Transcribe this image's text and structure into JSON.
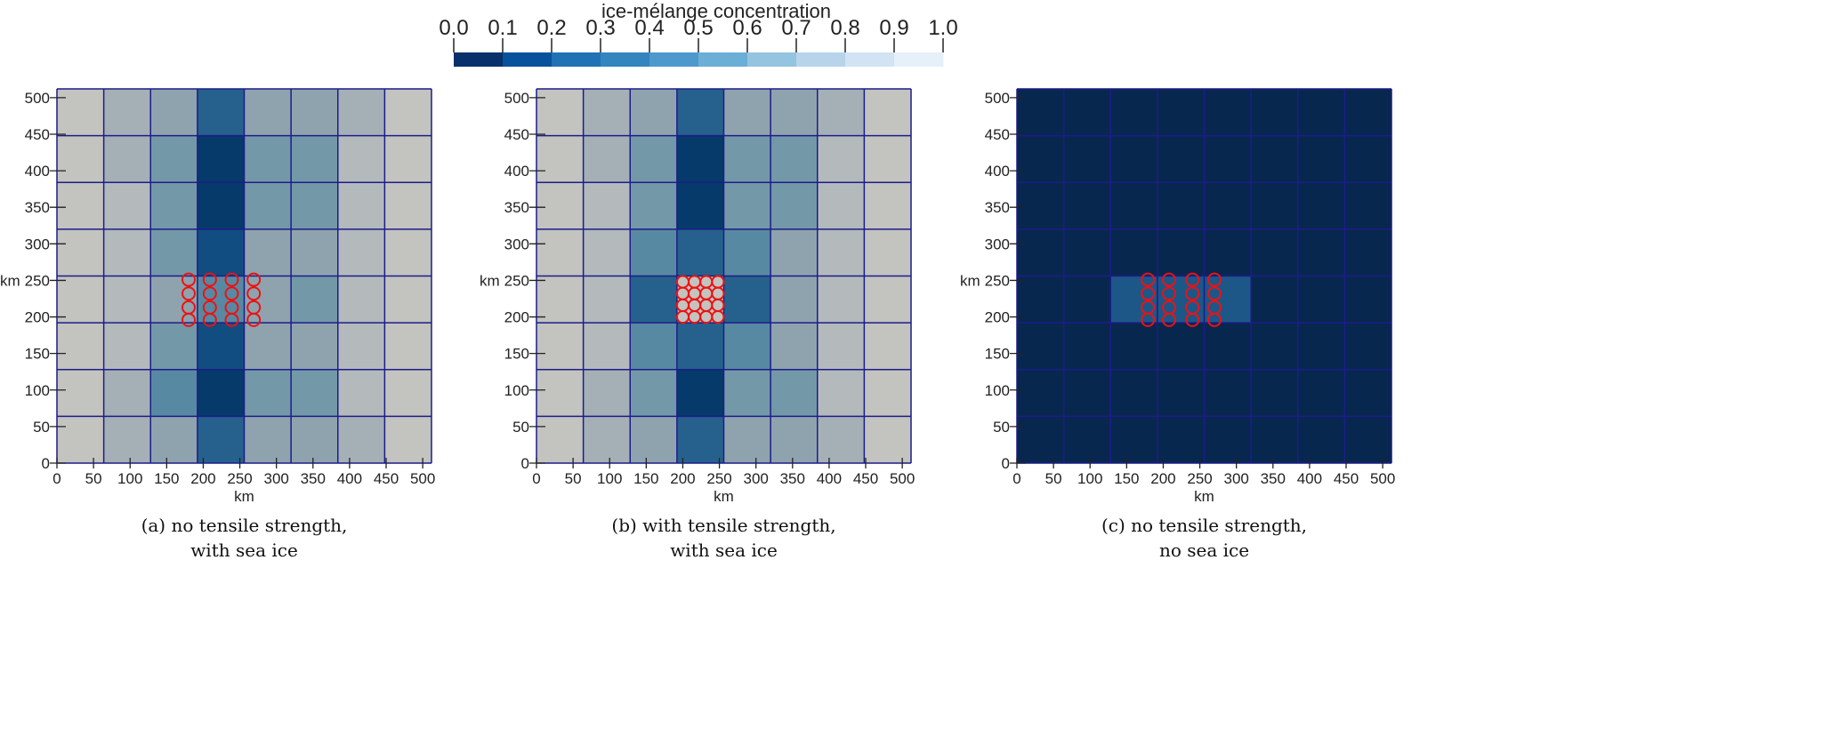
{
  "chart_data": {
    "type": "heatmap",
    "colorbar": {
      "title": "ice-mélange concentration",
      "ticks": [
        "0.0",
        "0.1",
        "0.2",
        "0.3",
        "0.4",
        "0.5",
        "0.6",
        "0.7",
        "0.8",
        "0.9",
        "1.0"
      ],
      "range": [
        0,
        1
      ],
      "colors": [
        "#08306b",
        "#08519c",
        "#2171b5",
        "#3484c0",
        "#4d98cc",
        "#6baed6",
        "#94c4df",
        "#b7d4ea",
        "#d2e3f3",
        "#e6f0f9",
        "#f7fbff"
      ]
    },
    "grid_color": "#1c1c8a",
    "marker_color": "#ee1111",
    "panels": [
      {
        "caption": [
          "(a) no tensile strength,",
          "with sea ice"
        ],
        "xlabel": "km",
        "ylabel": "km",
        "xlim": [
          0,
          512
        ],
        "ylim": [
          0,
          512
        ],
        "xticks": [
          "0",
          "50",
          "100",
          "150",
          "200",
          "250",
          "300",
          "350",
          "400",
          "450",
          "500"
        ],
        "yticks": [
          "0",
          "50",
          "100",
          "150",
          "200",
          "250",
          "300",
          "350",
          "400",
          "450",
          "500"
        ],
        "cell_size_km": 64,
        "cells_top_to_bottom": [
          [
            "#c3c3bf",
            "#a5afb6",
            "#8fa3ae",
            "#25618c",
            "#8fa3ae",
            "#8fa3ae",
            "#a5afb6",
            "#c3c3bf"
          ],
          [
            "#c3c3bf",
            "#a5afb6",
            "#7398a8",
            "#063a6b",
            "#7398a8",
            "#7398a8",
            "#b4b9bc",
            "#c3c3bf"
          ],
          [
            "#c3c3bf",
            "#b4b9bc",
            "#7398a8",
            "#063a6b",
            "#7398a8",
            "#7398a8",
            "#b4b9bc",
            "#c3c3bf"
          ],
          [
            "#c3c3bf",
            "#b4b9bc",
            "#7398a8",
            "#114d80",
            "#8fa3ae",
            "#8fa3ae",
            "#b4b9bc",
            "#c3c3bf"
          ],
          [
            "#c3c3bf",
            "#b4b9bc",
            "#8fa3ae",
            "#5889a3",
            "#8fa3ae",
            "#7398a8",
            "#b4b9bc",
            "#c3c3bf"
          ],
          [
            "#c3c3bf",
            "#b4b9bc",
            "#7398a8",
            "#114d80",
            "#8fa3ae",
            "#8fa3ae",
            "#b4b9bc",
            "#c3c3bf"
          ],
          [
            "#c3c3bf",
            "#a5afb6",
            "#5889a3",
            "#063a6b",
            "#7398a8",
            "#7398a8",
            "#b4b9bc",
            "#c3c3bf"
          ],
          [
            "#c3c3bf",
            "#a5afb6",
            "#8fa3ae",
            "#25618c",
            "#8fa3ae",
            "#8fa3ae",
            "#a5afb6",
            "#c3c3bf"
          ]
        ],
        "markers": {
          "x": [
            180,
            209,
            239,
            269
          ],
          "y": [
            196,
            213,
            232,
            251
          ],
          "radius_km": 8.5
        }
      },
      {
        "caption": [
          "(b) with tensile strength,",
          "with sea ice"
        ],
        "xlabel": "km",
        "ylabel": "km",
        "xlim": [
          0,
          512
        ],
        "ylim": [
          0,
          512
        ],
        "xticks": [
          "0",
          "50",
          "100",
          "150",
          "200",
          "250",
          "300",
          "350",
          "400",
          "450",
          "500"
        ],
        "yticks": [
          "0",
          "50",
          "100",
          "150",
          "200",
          "250",
          "300",
          "350",
          "400",
          "450",
          "500"
        ],
        "cell_size_km": 64,
        "cells_top_to_bottom": [
          [
            "#c3c3bf",
            "#a5afb6",
            "#8fa3ae",
            "#25618c",
            "#8fa3ae",
            "#8fa3ae",
            "#a5afb6",
            "#c3c3bf"
          ],
          [
            "#c3c3bf",
            "#a5afb6",
            "#7398a8",
            "#063a6b",
            "#7398a8",
            "#7398a8",
            "#b4b9bc",
            "#c3c3bf"
          ],
          [
            "#c3c3bf",
            "#b4b9bc",
            "#7398a8",
            "#063a6b",
            "#7398a8",
            "#7398a8",
            "#b4b9bc",
            "#c3c3bf"
          ],
          [
            "#c3c3bf",
            "#b4b9bc",
            "#5889a3",
            "#25618c",
            "#5889a3",
            "#8fa3ae",
            "#b4b9bc",
            "#c3c3bf"
          ],
          [
            "#c3c3bf",
            "#b4b9bc",
            "#25618c",
            "#c3c3bf",
            "#25618c",
            "#8fa3ae",
            "#b4b9bc",
            "#c3c3bf"
          ],
          [
            "#c3c3bf",
            "#b4b9bc",
            "#5889a3",
            "#25618c",
            "#5889a3",
            "#8fa3ae",
            "#b4b9bc",
            "#c3c3bf"
          ],
          [
            "#c3c3bf",
            "#a5afb6",
            "#7398a8",
            "#063a6b",
            "#7398a8",
            "#7398a8",
            "#b4b9bc",
            "#c3c3bf"
          ],
          [
            "#c3c3bf",
            "#a5afb6",
            "#8fa3ae",
            "#25618c",
            "#8fa3ae",
            "#8fa3ae",
            "#a5afb6",
            "#c3c3bf"
          ]
        ],
        "markers": {
          "x": [
            200,
            216,
            232,
            248
          ],
          "y": [
            200,
            216,
            232,
            248
          ],
          "radius_km": 8
        }
      },
      {
        "caption": [
          "(c) no tensile strength,",
          "no sea ice"
        ],
        "xlabel": "km",
        "ylabel": "km",
        "xlim": [
          0,
          512
        ],
        "ylim": [
          0,
          512
        ],
        "xticks": [
          "0",
          "50",
          "100",
          "150",
          "200",
          "250",
          "300",
          "350",
          "400",
          "450",
          "500"
        ],
        "yticks": [
          "0",
          "50",
          "100",
          "150",
          "200",
          "250",
          "300",
          "350",
          "400",
          "450",
          "500"
        ],
        "cell_size_km": 64,
        "cells_top_to_bottom": [
          [
            "#08274f",
            "#08274f",
            "#08274f",
            "#08274f",
            "#08274f",
            "#08274f",
            "#08274f",
            "#08274f"
          ],
          [
            "#08274f",
            "#08274f",
            "#08274f",
            "#08274f",
            "#08274f",
            "#08274f",
            "#08274f",
            "#08274f"
          ],
          [
            "#08274f",
            "#08274f",
            "#08274f",
            "#08274f",
            "#08274f",
            "#08274f",
            "#08274f",
            "#08274f"
          ],
          [
            "#08274f",
            "#08274f",
            "#08274f",
            "#08274f",
            "#08274f",
            "#08274f",
            "#08274f",
            "#08274f"
          ],
          [
            "#08274f",
            "#08274f",
            "#1d5788",
            "#1d5788",
            "#1d5788",
            "#08274f",
            "#08274f",
            "#08274f"
          ],
          [
            "#08274f",
            "#08274f",
            "#08274f",
            "#08274f",
            "#08274f",
            "#08274f",
            "#08274f",
            "#08274f"
          ],
          [
            "#08274f",
            "#08274f",
            "#08274f",
            "#08274f",
            "#08274f",
            "#08274f",
            "#08274f",
            "#08274f"
          ],
          [
            "#08274f",
            "#08274f",
            "#08274f",
            "#08274f",
            "#08274f",
            "#08274f",
            "#08274f",
            "#08274f"
          ]
        ],
        "markers": {
          "x": [
            179,
            208,
            240,
            270
          ],
          "y": [
            196,
            213,
            232,
            251
          ],
          "radius_km": 8.5
        }
      }
    ]
  }
}
